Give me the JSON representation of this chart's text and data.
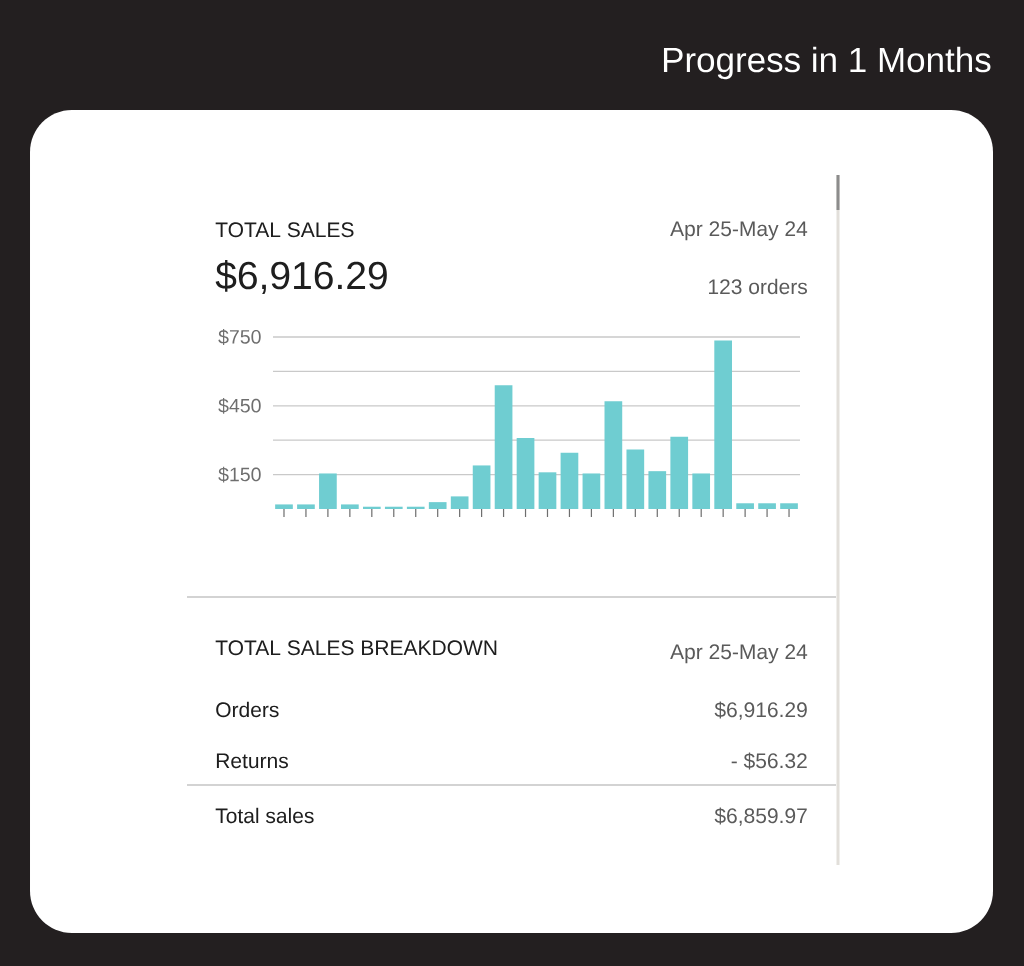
{
  "chart_data": [
    {
      "type": "bar",
      "title": "TOTAL SALES",
      "subtitle": "$6,916.29",
      "annotations": [
        "Progress in 1 Months",
        "Apr 25-May 24",
        "123 orders"
      ],
      "categories": [
        null,
        null,
        null,
        null,
        null,
        null,
        null,
        null,
        null,
        null,
        null,
        null,
        null,
        null,
        null,
        null,
        null,
        null,
        null,
        null,
        null,
        null,
        null,
        null
      ],
      "values": [
        20,
        20,
        155,
        20,
        10,
        10,
        10,
        30,
        55,
        190,
        540,
        310,
        160,
        245,
        155,
        470,
        260,
        165,
        315,
        155,
        735,
        25,
        25,
        25
      ],
      "color": "#6fcdd1",
      "ylim": [
        0,
        750
      ],
      "yticks": [
        {
          "value": 150,
          "label": "$150"
        },
        {
          "value": 300,
          "label": null
        },
        {
          "value": 450,
          "label": "$450"
        },
        {
          "value": 600,
          "label": null
        },
        {
          "value": 750,
          "label": "$750"
        }
      ],
      "grid": "y",
      "tick_labels": "y"
    },
    {
      "type": "other",
      "title": "TOTAL SALES BREAKDOWN",
      "annotations": [
        "Apr 25-May 24",
        "Orders",
        "$6,916.29",
        "Returns",
        "- $56.32",
        "Total sales",
        "$6,859.97"
      ]
    }
  ]
}
